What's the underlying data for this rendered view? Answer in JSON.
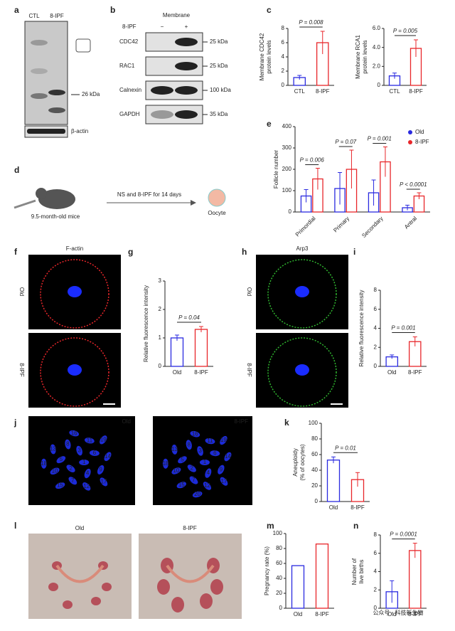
{
  "panels": {
    "a": {
      "label": "a",
      "lanes": [
        "CTL",
        "8-IPF"
      ],
      "band": "26 kDa",
      "loading": "β-actin"
    },
    "b": {
      "label": "b",
      "header": "Membrane",
      "treatment": "8-IPF",
      "lanes": [
        "−",
        "+"
      ],
      "rows": [
        {
          "name": "CDC42",
          "size": "25 kDa"
        },
        {
          "name": "RAC1",
          "size": "25 kDa"
        },
        {
          "name": "Calnexin",
          "size": "100 kDa"
        },
        {
          "name": "GAPDH",
          "size": "35 kDa"
        }
      ]
    },
    "c": {
      "label": "c"
    },
    "d": {
      "label": "d",
      "treatment": "NS and 8-IPF for 14 days",
      "mice": "9.5-month-old mice",
      "cell": "Oocyte"
    },
    "e": {
      "label": "e"
    },
    "f": {
      "label": "f",
      "stain": "F-actin",
      "rows": [
        "Old",
        "8-IPF"
      ]
    },
    "g": {
      "label": "g"
    },
    "h": {
      "label": "h",
      "stain": "Arp3",
      "rows": [
        "Old",
        "8-IPF"
      ]
    },
    "i": {
      "label": "i"
    },
    "j": {
      "label": "j",
      "groups": [
        {
          "name": "Old",
          "chromosomes": [
            "1",
            "2",
            "3",
            "4",
            "5",
            "6",
            "7",
            "8",
            "9",
            "10",
            "11",
            "12",
            "13",
            "14",
            "15",
            "16",
            "17",
            "18",
            "19"
          ]
        },
        {
          "name": "8-IPF",
          "chromosomes": [
            "1",
            "2",
            "3",
            "4",
            "5",
            "6",
            "7",
            "8",
            "9",
            "10",
            "11",
            "12",
            "13",
            "14",
            "15",
            "16",
            "17",
            "18",
            "19",
            "20"
          ]
        }
      ]
    },
    "k": {
      "label": "k"
    },
    "l": {
      "label": "l",
      "groups": [
        "Old",
        "8-IPF"
      ]
    },
    "m": {
      "label": "m"
    },
    "n": {
      "label": "n"
    }
  },
  "watermark": "公众号 · 科技新生物",
  "chart_data": [
    {
      "type": "bar",
      "ylabel": [
        "Membrane CDC42",
        "protein levels"
      ],
      "categories": [
        "CTL",
        "8-IPF"
      ],
      "values": [
        1.1,
        6.0
      ],
      "errors": [
        0.3,
        1.6
      ],
      "colors": [
        "#2a2ae0",
        "#e8262a"
      ],
      "ylim": [
        0,
        8
      ],
      "yticks": [
        0,
        2,
        4,
        6,
        8
      ],
      "annotations": [
        "P = 0.008"
      ]
    },
    {
      "type": "bar",
      "ylabel": [
        "Membrane RCA1",
        "protein levels"
      ],
      "categories": [
        "CTL",
        "8-IPF"
      ],
      "values": [
        1.0,
        3.9
      ],
      "errors": [
        0.3,
        0.9
      ],
      "colors": [
        "#2a2ae0",
        "#e8262a"
      ],
      "ylim": [
        0,
        6
      ],
      "yticks": [
        0,
        {
          "value": 2,
          "label": "2.0"
        },
        {
          "value": 4,
          "label": "4.0"
        },
        {
          "value": 6,
          "label": "6.0"
        }
      ],
      "annotations": [
        "P = 0.005"
      ]
    },
    {
      "type": "bar",
      "ylabel": [
        "Follicle number"
      ],
      "categories": [
        "Primordial",
        "Primary",
        "Secondary",
        "Antral"
      ],
      "series": [
        {
          "name": "Old",
          "color": "#2a2ae0",
          "values": [
            75,
            110,
            90,
            20
          ],
          "errors": [
            30,
            75,
            60,
            12
          ]
        },
        {
          "name": "8-IPF",
          "color": "#e8262a",
          "values": [
            155,
            200,
            235,
            75
          ],
          "errors": [
            50,
            90,
            70,
            15
          ]
        }
      ],
      "ylim": [
        0,
        400
      ],
      "yticks": [
        0,
        100,
        200,
        300,
        400
      ],
      "legend": "upper right",
      "annotations": [
        "P = 0.006",
        "P = 0.07",
        "P = 0.001",
        "P < 0.0001"
      ]
    },
    {
      "type": "bar",
      "ylabel": [
        "Relative fluorescence intensity"
      ],
      "categories": [
        "Old",
        "8-IPF"
      ],
      "values": [
        1.0,
        1.3
      ],
      "errors": [
        0.1,
        0.1
      ],
      "colors": [
        "#2a2ae0",
        "#e8262a"
      ],
      "ylim": [
        0,
        3
      ],
      "yticks": [
        0,
        1,
        2,
        3
      ],
      "annotations": [
        "P = 0.04"
      ]
    },
    {
      "type": "bar",
      "ylabel": [
        "Relative fluorescence intensity"
      ],
      "categories": [
        "Old",
        "8-IPF"
      ],
      "values": [
        1.0,
        2.6
      ],
      "errors": [
        0.2,
        0.5
      ],
      "colors": [
        "#2a2ae0",
        "#e8262a"
      ],
      "ylim": [
        0,
        8
      ],
      "yticks": [
        0,
        2,
        4,
        6,
        8
      ],
      "annotations": [
        "P = 0.001"
      ]
    },
    {
      "type": "bar",
      "ylabel": [
        "Aneuploidy",
        "(% of oocytes)"
      ],
      "categories": [
        "Old",
        "8-IPF"
      ],
      "values": [
        53,
        28
      ],
      "errors": [
        4,
        9
      ],
      "colors": [
        "#2a2ae0",
        "#e8262a"
      ],
      "ylim": [
        0,
        100
      ],
      "yticks": [
        0,
        20,
        40,
        60,
        80,
        100
      ],
      "annotations": [
        "P = 0.01"
      ]
    },
    {
      "type": "bar",
      "ylabel": [
        "Pregnancy rate (%)"
      ],
      "categories": [
        "Old",
        "8-IPF"
      ],
      "values": [
        57,
        86
      ],
      "colors": [
        "#2a2ae0",
        "#e8262a"
      ],
      "ylim": [
        0,
        100
      ],
      "yticks": [
        0,
        20,
        40,
        60,
        80,
        100
      ]
    },
    {
      "type": "bar",
      "ylabel": [
        "Number of",
        "live births"
      ],
      "categories": [
        "Old",
        "8-IPF"
      ],
      "values": [
        1.8,
        6.3
      ],
      "errors": [
        1.2,
        0.8
      ],
      "colors": [
        "#2a2ae0",
        "#e8262a"
      ],
      "ylim": [
        0,
        8
      ],
      "yticks": [
        0,
        2,
        4,
        6,
        8
      ],
      "annotations": [
        "P = 0.0001"
      ]
    }
  ]
}
